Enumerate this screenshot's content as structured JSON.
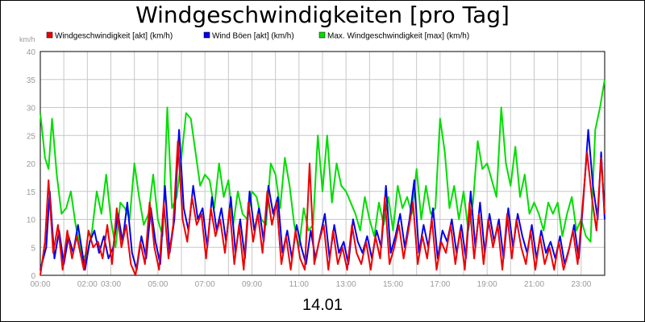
{
  "chart_data": {
    "type": "line",
    "title": "Windgeschwindigkeiten [pro Tag]",
    "ylabel": "km/h",
    "xlabel": "14.01",
    "ylim": [
      0,
      40
    ],
    "yticks": [
      0,
      5,
      10,
      15,
      20,
      25,
      30,
      35,
      40
    ],
    "xlim": [
      0,
      24
    ],
    "xticks": [
      {
        "value": 0,
        "label": "00:00"
      },
      {
        "value": 2,
        "label": "02:00"
      },
      {
        "value": 3,
        "label": "03:00"
      },
      {
        "value": 5,
        "label": "05:00"
      },
      {
        "value": 7,
        "label": "07:00"
      },
      {
        "value": 9,
        "label": "09:00"
      },
      {
        "value": 11,
        "label": "11:00"
      },
      {
        "value": 13,
        "label": "13:00"
      },
      {
        "value": 15,
        "label": "15:00"
      },
      {
        "value": 17,
        "label": "17:00"
      },
      {
        "value": 19,
        "label": "19:00"
      },
      {
        "value": 21,
        "label": "21:00"
      },
      {
        "value": 23,
        "label": "23:00"
      }
    ],
    "grid": true,
    "legend_position": "top",
    "series": [
      {
        "name": "Max. Windgeschwindigkeit [max] (km/h)",
        "color": "#00dd00",
        "x": [
          0,
          0.2,
          0.35,
          0.5,
          0.7,
          0.9,
          1.1,
          1.3,
          1.5,
          1.8,
          2.0,
          2.2,
          2.4,
          2.6,
          2.8,
          3.0,
          3.2,
          3.4,
          3.6,
          3.8,
          4.0,
          4.2,
          4.4,
          4.6,
          4.8,
          5.0,
          5.2,
          5.4,
          5.6,
          5.8,
          6.0,
          6.2,
          6.4,
          6.6,
          6.8,
          7.0,
          7.2,
          7.4,
          7.6,
          7.8,
          8.0,
          8.2,
          8.4,
          8.6,
          8.8,
          9.0,
          9.2,
          9.4,
          9.6,
          9.8,
          10.0,
          10.2,
          10.4,
          10.6,
          10.8,
          11.0,
          11.2,
          11.4,
          11.6,
          11.8,
          12.0,
          12.2,
          12.4,
          12.6,
          12.8,
          13.0,
          13.2,
          13.4,
          13.6,
          13.8,
          14.0,
          14.2,
          14.4,
          14.6,
          14.8,
          15.0,
          15.2,
          15.4,
          15.6,
          15.8,
          16.0,
          16.2,
          16.4,
          16.6,
          16.8,
          17.0,
          17.2,
          17.4,
          17.6,
          17.8,
          18.0,
          18.2,
          18.4,
          18.6,
          18.8,
          19.0,
          19.2,
          19.4,
          19.6,
          19.8,
          20.0,
          20.2,
          20.4,
          20.6,
          20.8,
          21.0,
          21.2,
          21.4,
          21.6,
          21.8,
          22.0,
          22.2,
          22.4,
          22.6,
          22.8,
          23.0,
          23.2,
          23.4,
          23.6,
          23.8,
          24.0
        ],
        "values": [
          29,
          21,
          19,
          28,
          18,
          11,
          12,
          15,
          9,
          3,
          4,
          8,
          15,
          11,
          18,
          10,
          5,
          13,
          12,
          10,
          20,
          14,
          9,
          11,
          18,
          10,
          7,
          30,
          12,
          14,
          21,
          29,
          28,
          22,
          16,
          18,
          17,
          12,
          20,
          14,
          17,
          9,
          15,
          11,
          10,
          15,
          14,
          10,
          9,
          20,
          18,
          12,
          21,
          16,
          9,
          5,
          12,
          8,
          9,
          25,
          15,
          25,
          13,
          20,
          16,
          15,
          13,
          11,
          8,
          14,
          10,
          7,
          13,
          9,
          14,
          8,
          16,
          12,
          14,
          11,
          19,
          10,
          16,
          11,
          12,
          28,
          22,
          12,
          16,
          10,
          15,
          8,
          13,
          24,
          19,
          20,
          17,
          14,
          30,
          20,
          16,
          23,
          14,
          18,
          11,
          13,
          11,
          8,
          13,
          11,
          13,
          7,
          11,
          14,
          8,
          10,
          7,
          6,
          26,
          30,
          35
        ]
      },
      {
        "name": "Wind Böen [akt] (km/h)",
        "color": "#0000ee",
        "x": [
          0,
          0.25,
          0.4,
          0.6,
          0.8,
          1.0,
          1.2,
          1.4,
          1.6,
          1.9,
          2.1,
          2.3,
          2.5,
          2.7,
          2.9,
          3.1,
          3.3,
          3.5,
          3.7,
          3.9,
          4.1,
          4.3,
          4.5,
          4.7,
          4.9,
          5.1,
          5.3,
          5.5,
          5.7,
          5.9,
          6.1,
          6.3,
          6.5,
          6.7,
          6.9,
          7.1,
          7.3,
          7.5,
          7.7,
          7.9,
          8.1,
          8.3,
          8.5,
          8.7,
          8.9,
          9.1,
          9.3,
          9.5,
          9.7,
          9.9,
          10.1,
          10.3,
          10.5,
          10.7,
          10.9,
          11.1,
          11.3,
          11.5,
          11.7,
          11.9,
          12.1,
          12.3,
          12.5,
          12.7,
          12.9,
          13.1,
          13.3,
          13.5,
          13.7,
          13.9,
          14.1,
          14.3,
          14.5,
          14.7,
          14.9,
          15.1,
          15.3,
          15.5,
          15.7,
          15.9,
          16.1,
          16.3,
          16.5,
          16.7,
          16.9,
          17.1,
          17.3,
          17.5,
          17.7,
          17.9,
          18.1,
          18.3,
          18.5,
          18.7,
          18.9,
          19.1,
          19.3,
          19.5,
          19.7,
          19.9,
          20.1,
          20.3,
          20.5,
          20.7,
          20.9,
          21.1,
          21.3,
          21.5,
          21.7,
          21.9,
          22.1,
          22.3,
          22.5,
          22.7,
          22.9,
          23.1,
          23.3,
          23.5,
          23.7,
          23.85,
          24.0
        ],
        "values": [
          1,
          5,
          15,
          3,
          8,
          2,
          7,
          4,
          9,
          1,
          6,
          8,
          4,
          7,
          3,
          5,
          11,
          6,
          13,
          4,
          1,
          7,
          3,
          12,
          6,
          2,
          16,
          4,
          10,
          26,
          12,
          8,
          16,
          10,
          12,
          5,
          14,
          8,
          12,
          6,
          14,
          4,
          10,
          3,
          15,
          8,
          12,
          6,
          16,
          11,
          14,
          4,
          8,
          3,
          9,
          5,
          2,
          8,
          3,
          7,
          11,
          3,
          9,
          4,
          6,
          2,
          10,
          6,
          4,
          7,
          3,
          8,
          5,
          16,
          4,
          7,
          11,
          5,
          10,
          17,
          4,
          9,
          5,
          12,
          3,
          8,
          6,
          10,
          4,
          9,
          3,
          15,
          5,
          13,
          4,
          11,
          6,
          10,
          3,
          12,
          5,
          11,
          7,
          4,
          9,
          3,
          8,
          4,
          6,
          3,
          7,
          2,
          5,
          9,
          3,
          14,
          26,
          16,
          10,
          22,
          10
        ]
      },
      {
        "name": "Windgeschwindigkeit [akt] (km/h)",
        "color": "#ee0000",
        "x": [
          0,
          0.2,
          0.35,
          0.55,
          0.75,
          0.95,
          1.15,
          1.35,
          1.55,
          1.85,
          2.05,
          2.25,
          2.45,
          2.65,
          2.85,
          3.05,
          3.25,
          3.45,
          3.65,
          3.85,
          4.05,
          4.25,
          4.45,
          4.65,
          4.85,
          5.05,
          5.25,
          5.45,
          5.65,
          5.85,
          6.05,
          6.25,
          6.45,
          6.65,
          6.85,
          7.05,
          7.25,
          7.45,
          7.65,
          7.85,
          8.05,
          8.25,
          8.45,
          8.65,
          8.85,
          9.05,
          9.25,
          9.45,
          9.65,
          9.85,
          10.05,
          10.25,
          10.45,
          10.65,
          10.85,
          11.05,
          11.25,
          11.45,
          11.65,
          11.85,
          12.05,
          12.25,
          12.45,
          12.65,
          12.85,
          13.05,
          13.25,
          13.45,
          13.65,
          13.85,
          14.05,
          14.25,
          14.45,
          14.65,
          14.85,
          15.05,
          15.25,
          15.45,
          15.65,
          15.85,
          16.05,
          16.25,
          16.45,
          16.65,
          16.85,
          17.05,
          17.25,
          17.45,
          17.65,
          17.85,
          18.05,
          18.25,
          18.45,
          18.65,
          18.85,
          19.05,
          19.25,
          19.45,
          19.65,
          19.85,
          20.05,
          20.25,
          20.45,
          20.65,
          20.85,
          21.05,
          21.25,
          21.45,
          21.65,
          21.85,
          22.05,
          22.25,
          22.45,
          22.65,
          22.85,
          23.05,
          23.25,
          23.45,
          23.65,
          23.85,
          24.0
        ],
        "values": [
          0,
          6,
          17,
          4,
          9,
          1,
          8,
          3,
          7,
          1,
          8,
          5,
          6,
          3,
          9,
          2,
          12,
          5,
          9,
          2,
          0,
          6,
          2,
          13,
          5,
          1,
          13,
          3,
          9,
          24,
          10,
          6,
          14,
          9,
          11,
          3,
          12,
          7,
          10,
          4,
          12,
          2,
          9,
          1,
          13,
          6,
          11,
          4,
          15,
          9,
          13,
          2,
          7,
          1,
          8,
          3,
          1,
          20,
          2,
          6,
          9,
          1,
          8,
          2,
          5,
          1,
          9,
          4,
          2,
          6,
          1,
          7,
          3,
          14,
          2,
          5,
          9,
          3,
          8,
          13,
          2,
          7,
          3,
          10,
          1,
          6,
          4,
          9,
          2,
          8,
          1,
          13,
          3,
          11,
          2,
          10,
          5,
          9,
          1,
          11,
          3,
          10,
          5,
          2,
          8,
          1,
          7,
          2,
          5,
          1,
          6,
          1,
          4,
          8,
          2,
          12,
          22,
          14,
          8,
          21,
          11
        ]
      }
    ]
  }
}
